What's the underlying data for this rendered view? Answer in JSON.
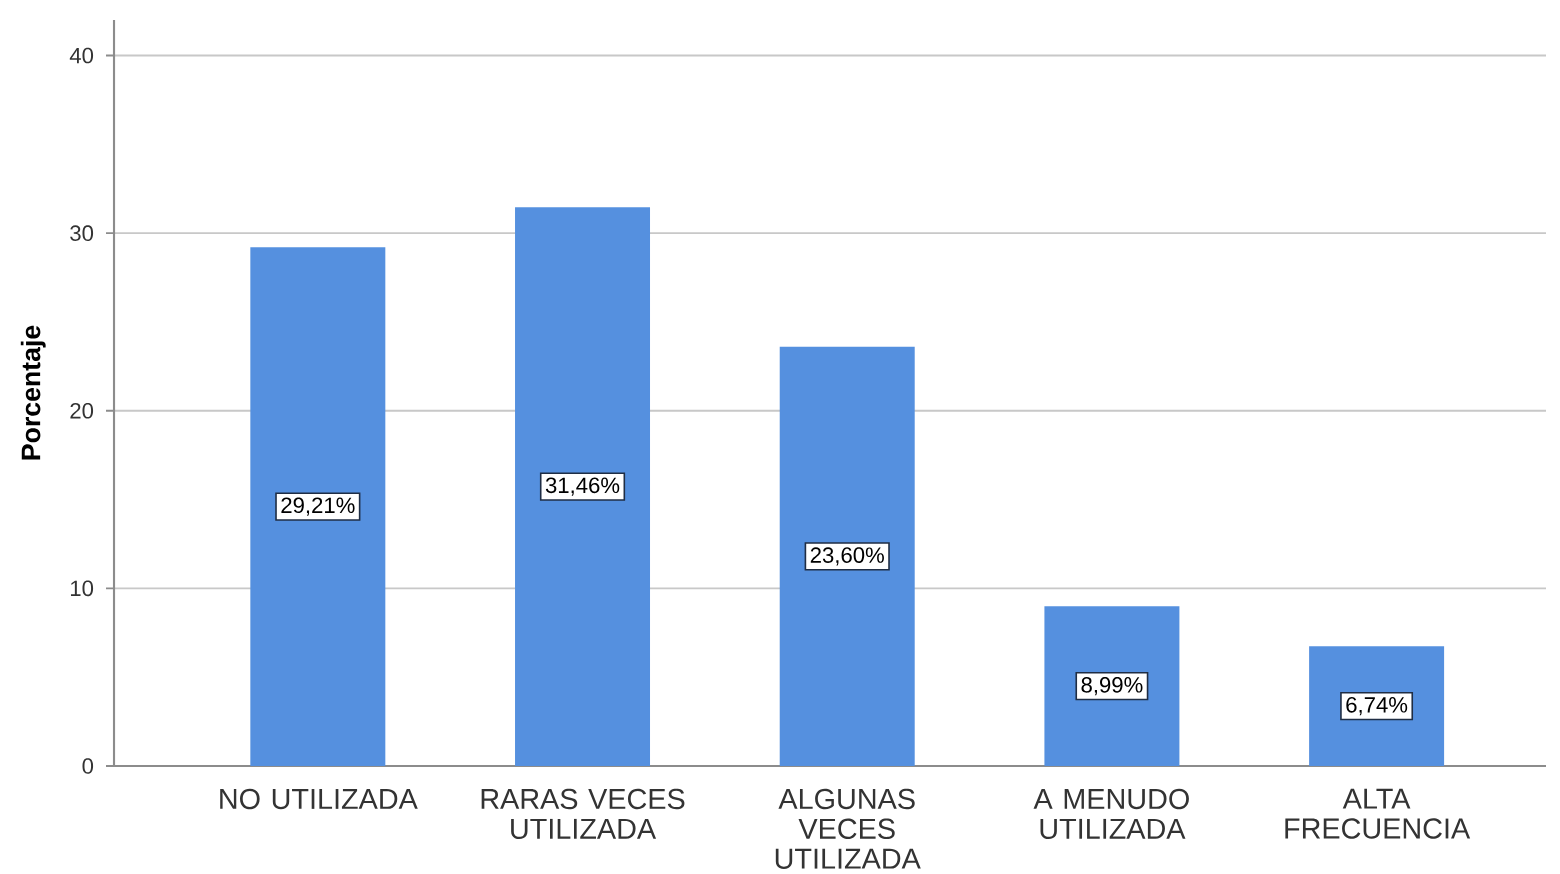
{
  "chart_data": {
    "type": "bar",
    "ylabel": "Porcentaje",
    "categories": [
      "NO UTILIZADA",
      "RARAS VECES UTILIZADA",
      "ALGUNAS VECES UTILIZADA",
      "A MENUDO UTILIZADA",
      "ALTA FRECUENCIA"
    ],
    "values": [
      29.21,
      31.46,
      23.6,
      8.99,
      6.74
    ],
    "value_labels": [
      "29,21%",
      "31,46%",
      "23,60%",
      "8,99%",
      "6,74%"
    ],
    "color": "#5590df",
    "ylim": [
      0,
      42
    ],
    "yticks": [
      0,
      10,
      20,
      30,
      40
    ],
    "grid": "y"
  }
}
